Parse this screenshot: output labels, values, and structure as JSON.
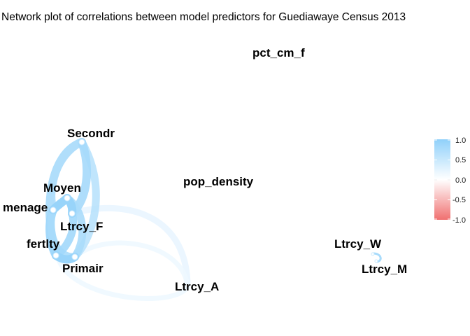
{
  "title": "Network plot of correlations between model predictors for Guediawaye Census 2013",
  "nodes": [
    {
      "id": "pct_cm_f",
      "label": "pct_cm_f"
    },
    {
      "id": "Secondr",
      "label": "Secondr"
    },
    {
      "id": "pop_density",
      "label": "pop_density"
    },
    {
      "id": "Moyen",
      "label": "Moyen"
    },
    {
      "id": "menage",
      "label": "menage"
    },
    {
      "id": "Ltrcy_F",
      "label": "Ltrcy_F"
    },
    {
      "id": "fertlty",
      "label": "fertlty"
    },
    {
      "id": "Primair",
      "label": "Primair"
    },
    {
      "id": "Ltrcy_A",
      "label": "Ltrcy_A"
    },
    {
      "id": "Ltrcy_W",
      "label": "Ltrcy_W"
    },
    {
      "id": "Ltrcy_M",
      "label": "Ltrcy_M"
    }
  ],
  "legend": {
    "ticks": [
      "1.0",
      "0.5",
      "0.0",
      "-0.5",
      "-1.0"
    ],
    "colors": {
      "positive": "#90d0f8",
      "neutral": "#ffffff",
      "negative": "#f08080"
    }
  }
}
